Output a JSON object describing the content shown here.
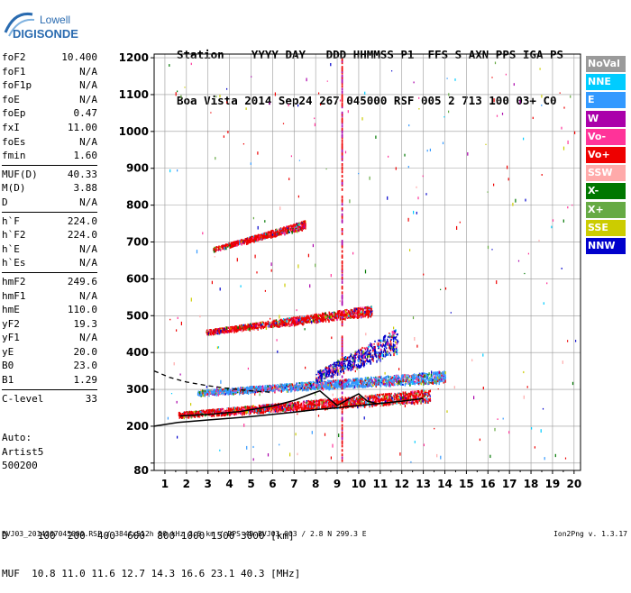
{
  "logo": {
    "line1": "Lowell",
    "line2": "DIGISONDE"
  },
  "header": {
    "labels": [
      "Station",
      "YYYY",
      "DAY",
      "DDD",
      "HHMMSS",
      "P1",
      "FFS",
      "S",
      "AXN",
      "PPS",
      "IGA",
      "PS"
    ],
    "values": [
      "Boa Vista",
      "2014",
      "Sep24",
      "267",
      "045000",
      "RSF",
      "005",
      "2",
      "713",
      "100",
      "03+",
      "C0"
    ]
  },
  "params": [
    {
      "group": [
        {
          "label": "foF2",
          "value": "10.400"
        },
        {
          "label": "foF1",
          "value": "N/A"
        },
        {
          "label": "foF1p",
          "value": "N/A"
        },
        {
          "label": "foE",
          "value": "N/A"
        },
        {
          "label": "foEp",
          "value": "0.47"
        },
        {
          "label": "fxI",
          "value": "11.00"
        },
        {
          "label": "foEs",
          "value": "N/A"
        },
        {
          "label": "fmin",
          "value": "1.60"
        }
      ]
    },
    {
      "group": [
        {
          "label": "MUF(D)",
          "value": "40.33"
        },
        {
          "label": "M(D)",
          "value": "3.88"
        },
        {
          "label": "D",
          "value": "N/A"
        }
      ]
    },
    {
      "group": [
        {
          "label": "h`F",
          "value": "224.0"
        },
        {
          "label": "h`F2",
          "value": "224.0"
        },
        {
          "label": "h`E",
          "value": "N/A"
        },
        {
          "label": "h`Es",
          "value": "N/A"
        }
      ]
    },
    {
      "group": [
        {
          "label": "hmF2",
          "value": "249.6"
        },
        {
          "label": "hmF1",
          "value": "N/A"
        },
        {
          "label": "hmE",
          "value": "110.0"
        },
        {
          "label": "yF2",
          "value": "19.3"
        },
        {
          "label": "yF1",
          "value": "N/A"
        },
        {
          "label": "yE",
          "value": "20.0"
        },
        {
          "label": "B0",
          "value": "23.0"
        },
        {
          "label": "B1",
          "value": "1.29"
        }
      ]
    },
    {
      "group": [
        {
          "label": "C-level",
          "value": "33"
        }
      ]
    }
  ],
  "auto": {
    "line1": "Auto:",
    "line2": "Artist5",
    "line3": "500200"
  },
  "legend": [
    {
      "label": "NoVal",
      "color": "#9a9a9a"
    },
    {
      "label": "NNE",
      "color": "#00ccff"
    },
    {
      "label": "E",
      "color": "#3399ff"
    },
    {
      "label": "W",
      "color": "#aa00aa"
    },
    {
      "label": "Vo-",
      "color": "#ff3399"
    },
    {
      "label": "Vo+",
      "color": "#ee0000"
    },
    {
      "label": "SSW",
      "color": "#ffaaaa"
    },
    {
      "label": "X-",
      "color": "#007700"
    },
    {
      "label": "X+",
      "color": "#66aa44"
    },
    {
      "label": "SSE",
      "color": "#cccc00"
    },
    {
      "label": "NNW",
      "color": "#0000cc"
    }
  ],
  "muf_table": {
    "d_label": "D",
    "d_values": [
      "100",
      "200",
      "400",
      "600",
      "800",
      "1000",
      "1500",
      "3000"
    ],
    "d_unit": "[km]",
    "muf_label": "MUF",
    "muf_values": [
      "10.8",
      "11.0",
      "11.6",
      "12.7",
      "14.3",
      "16.6",
      "23.1",
      "40.3"
    ],
    "muf_unit": "[MHz]"
  },
  "footer": {
    "left": "BVJ03_2014267045000.RSF / 384fx512h 50 kHz 2.5 km / DPS-4D BVJ03 003 / 2.8 N 299.3 E",
    "right": "Ion2Png v. 1.3.17"
  },
  "chart_data": {
    "type": "scatter",
    "title": "",
    "xlabel": "",
    "ylabel": "",
    "xlim": [
      0.5,
      20.3
    ],
    "ylim": [
      80,
      1210
    ],
    "xticks": [
      1,
      2,
      3,
      4,
      5,
      6,
      7,
      8,
      9,
      10,
      11,
      12,
      13,
      14,
      15,
      16,
      17,
      18,
      19,
      20
    ],
    "yticks": [
      80,
      100,
      200,
      300,
      400,
      500,
      600,
      700,
      800,
      900,
      1000,
      1100,
      1200
    ],
    "ytick_labels": [
      "80",
      "",
      "200",
      "300",
      "400",
      "500",
      "600",
      "700",
      "800",
      "900",
      "1000",
      "1100",
      "1200"
    ],
    "grid": true,
    "traces": [
      {
        "name": "F2 1st hop",
        "f_range": [
          1.6,
          13.3
        ],
        "h_start": 230,
        "h_end": 278,
        "spread": 22,
        "dominant": "Vo+"
      },
      {
        "name": "F2 1st hop upper",
        "f_range": [
          2.5,
          14.0
        ],
        "h_start": 290,
        "h_end": 330,
        "spread": 20,
        "dominant": "E"
      },
      {
        "name": "F2 2nd hop",
        "f_range": [
          2.9,
          10.6
        ],
        "h_start": 455,
        "h_end": 510,
        "spread": 18,
        "dominant": "Vo+"
      },
      {
        "name": "F2 3rd hop",
        "f_range": [
          3.2,
          7.5
        ],
        "h_start": 680,
        "h_end": 745,
        "spread": 14,
        "dominant": "Vo+"
      },
      {
        "name": "spread F",
        "f_range": [
          8.0,
          11.8
        ],
        "h_start": 330,
        "h_end": 420,
        "spread": 45,
        "dominant": "NNW"
      }
    ],
    "profile_curve": [
      [
        0.5,
        200
      ],
      [
        1.6,
        210
      ],
      [
        3,
        217
      ],
      [
        5,
        226
      ],
      [
        7,
        238
      ],
      [
        8,
        245
      ],
      [
        9,
        250
      ],
      [
        10,
        256
      ],
      [
        11,
        262
      ],
      [
        12,
        268
      ],
      [
        13,
        275
      ]
    ],
    "trace_curve": [
      [
        1.7,
        228
      ],
      [
        3,
        232
      ],
      [
        4.5,
        240
      ],
      [
        6,
        255
      ],
      [
        7,
        270
      ],
      [
        7.8,
        288
      ],
      [
        8.2,
        296
      ],
      [
        8.6,
        276
      ],
      [
        9.0,
        256
      ],
      [
        9.6,
        276
      ],
      [
        10.0,
        288
      ],
      [
        10.4,
        268
      ],
      [
        10.8,
        262
      ]
    ],
    "dashed_curve": [
      [
        0.5,
        350
      ],
      [
        1.2,
        333
      ],
      [
        2,
        320
      ],
      [
        3,
        310
      ],
      [
        4,
        302
      ],
      [
        5,
        296
      ],
      [
        6,
        292
      ]
    ],
    "interference_lines": [
      9.2
    ]
  }
}
